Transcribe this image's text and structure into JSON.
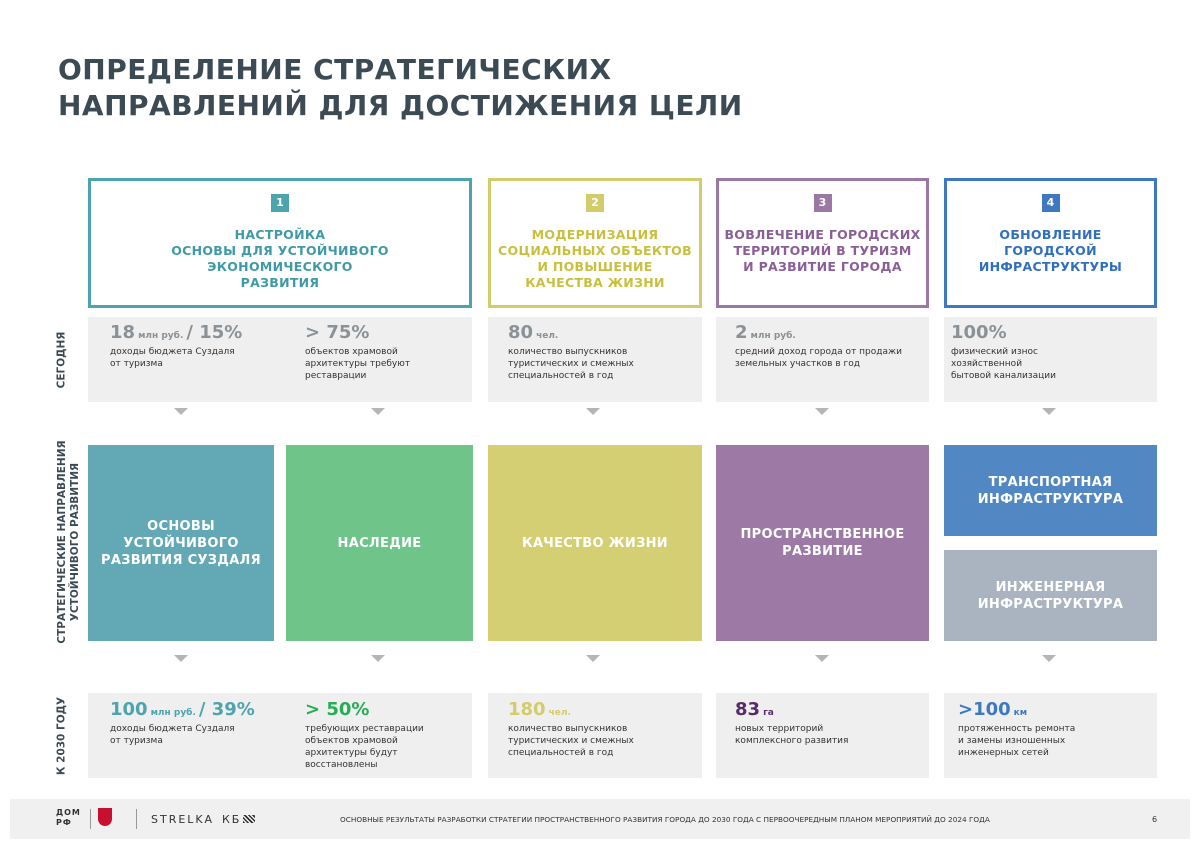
{
  "title": [
    "ОПРЕДЕЛЕНИЕ СТРАТЕГИЧЕСКИХ",
    "НАПРАВЛЕНИЙ ДЛЯ ДОСТИЖЕНИЯ ЦЕЛИ"
  ],
  "row_labels": {
    "today": "СЕГОДНЯ",
    "directions": [
      "СТРАТЕГИЧЕСКИЕ НАПРАВЛЕНИЯ",
      "УСТОЙЧИВОГО РАЗВИТИЯ"
    ],
    "target": "К 2030 ГОДУ"
  },
  "goals": [
    {
      "number": "1",
      "title": [
        "НАСТРОЙКА",
        "ОСНОВЫ ДЛЯ УСТОЙЧИВОГО",
        "ЭКОНОМИЧЕСКОГО",
        "РАЗВИТИЯ"
      ]
    },
    {
      "number": "2",
      "title": [
        "МОДЕРНИЗАЦИЯ",
        "СОЦИАЛЬНЫХ ОБЪЕКТОВ",
        "И ПОВЫШЕНИЕ",
        "КАЧЕСТВА ЖИЗНИ"
      ]
    },
    {
      "number": "3",
      "title": [
        "ВОВЛЕЧЕНИЕ ГОРОДСКИХ",
        "ТЕРРИТОРИЙ В ТУРИЗМ",
        "И РАЗВИТИЕ ГОРОДА"
      ]
    },
    {
      "number": "4",
      "title": [
        "ОБНОВЛЕНИЕ",
        "ГОРОДСКОЙ",
        "ИНФРАСТРУКТУРЫ"
      ]
    }
  ],
  "today": [
    {
      "value": "18",
      "unit": "млн руб.",
      "suffix": "/ 15%",
      "description": [
        "доходы бюджета Суздаля",
        "от туризма"
      ]
    },
    {
      "value": "> 75%",
      "description": [
        "объектов храмовой",
        "архитектуры требуют",
        "реставрации"
      ]
    },
    {
      "value": "80",
      "unit": "чел.",
      "description": [
        "количество выпускников",
        "туристических и смежных",
        "специальностей в год"
      ]
    },
    {
      "value": "2",
      "unit": "млн руб.",
      "description": [
        "средний доход города от продажи",
        "земельных участков в год"
      ]
    },
    {
      "value": "100%",
      "description": [
        "физический износ",
        "хозяйственной",
        "бытовой канализации"
      ]
    }
  ],
  "directions": [
    [
      "ОСНОВЫ УСТОЙЧИВОГО",
      "РАЗВИТИЯ СУЗДАЛЯ"
    ],
    [
      "НАСЛЕДИЕ"
    ],
    [
      "КАЧЕСТВО ЖИЗНИ"
    ],
    [
      "ПРОСТРАНСТВЕННОЕ",
      "РАЗВИТИЕ"
    ],
    [
      "ТРАНСПОРТНАЯ",
      "ИНФРАСТРУКТУРА"
    ],
    [
      "ИНЖЕНЕРНАЯ",
      "ИНФРАСТРУКТУРА"
    ]
  ],
  "target": [
    {
      "value": "100",
      "unit": "млн руб.",
      "suffix": "/ 39%",
      "description": [
        "доходы бюджета Суздаля",
        "от туризма"
      ]
    },
    {
      "value": "> 50%",
      "description": [
        "требующих реставрации",
        "объектов храмовой",
        "архитектуры будут",
        "восстановлены"
      ]
    },
    {
      "value": "180",
      "unit": "чел.",
      "description": [
        "количество выпускников",
        "туристических и смежных",
        "специальностей в год"
      ]
    },
    {
      "value": "83",
      "unit": "га",
      "description": [
        "новых территорий",
        "комплексного развития"
      ]
    },
    {
      "value": ">100",
      "unit": "км",
      "description": [
        "протяженность ремонта",
        "и замены изношенных",
        "инженерных сетей"
      ]
    }
  ],
  "footer": {
    "logo": [
      "ДОМ",
      "РФ"
    ],
    "brand": "STRELKA",
    "brand_suffix": "КБ",
    "caption": "ОСНОВНЫЕ РЕЗУЛЬТАТЫ РАЗРАБОТКИ СТРАТЕГИИ ПРОСТРАНСТВЕННОГО РАЗВИТИЯ ГОРОДА ДО 2030 ГОДА С ПЕРВООЧЕРЕДНЫМ ПЛАНОМ МЕРОПРИЯТИЙ ДО 2024 ГОДА",
    "page": "6"
  }
}
